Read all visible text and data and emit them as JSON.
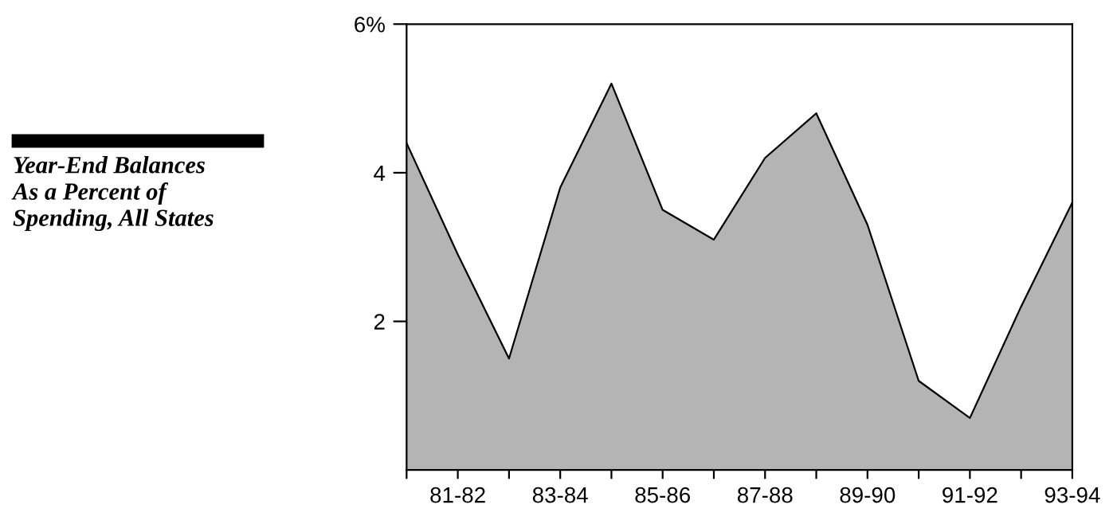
{
  "chart_data": {
    "type": "area",
    "title": "Year-End Balances\nAs a Percent of\nSpending, All States",
    "categories": [
      null,
      "81-82",
      null,
      "83-84",
      null,
      "85-86",
      null,
      "87-88",
      null,
      "89-90",
      null,
      "91-92",
      null,
      "93-94"
    ],
    "values": [
      4.4,
      2.9,
      1.5,
      3.8,
      5.2,
      3.5,
      3.1,
      4.2,
      4.8,
      3.3,
      1.2,
      0.7,
      2.2,
      3.6
    ],
    "color": "#b4b4b4",
    "ylim": [
      0,
      6
    ],
    "yticks": [
      2,
      4,
      {
        "value": 6,
        "label": "6%"
      }
    ],
    "grid": false,
    "legend": false
  }
}
